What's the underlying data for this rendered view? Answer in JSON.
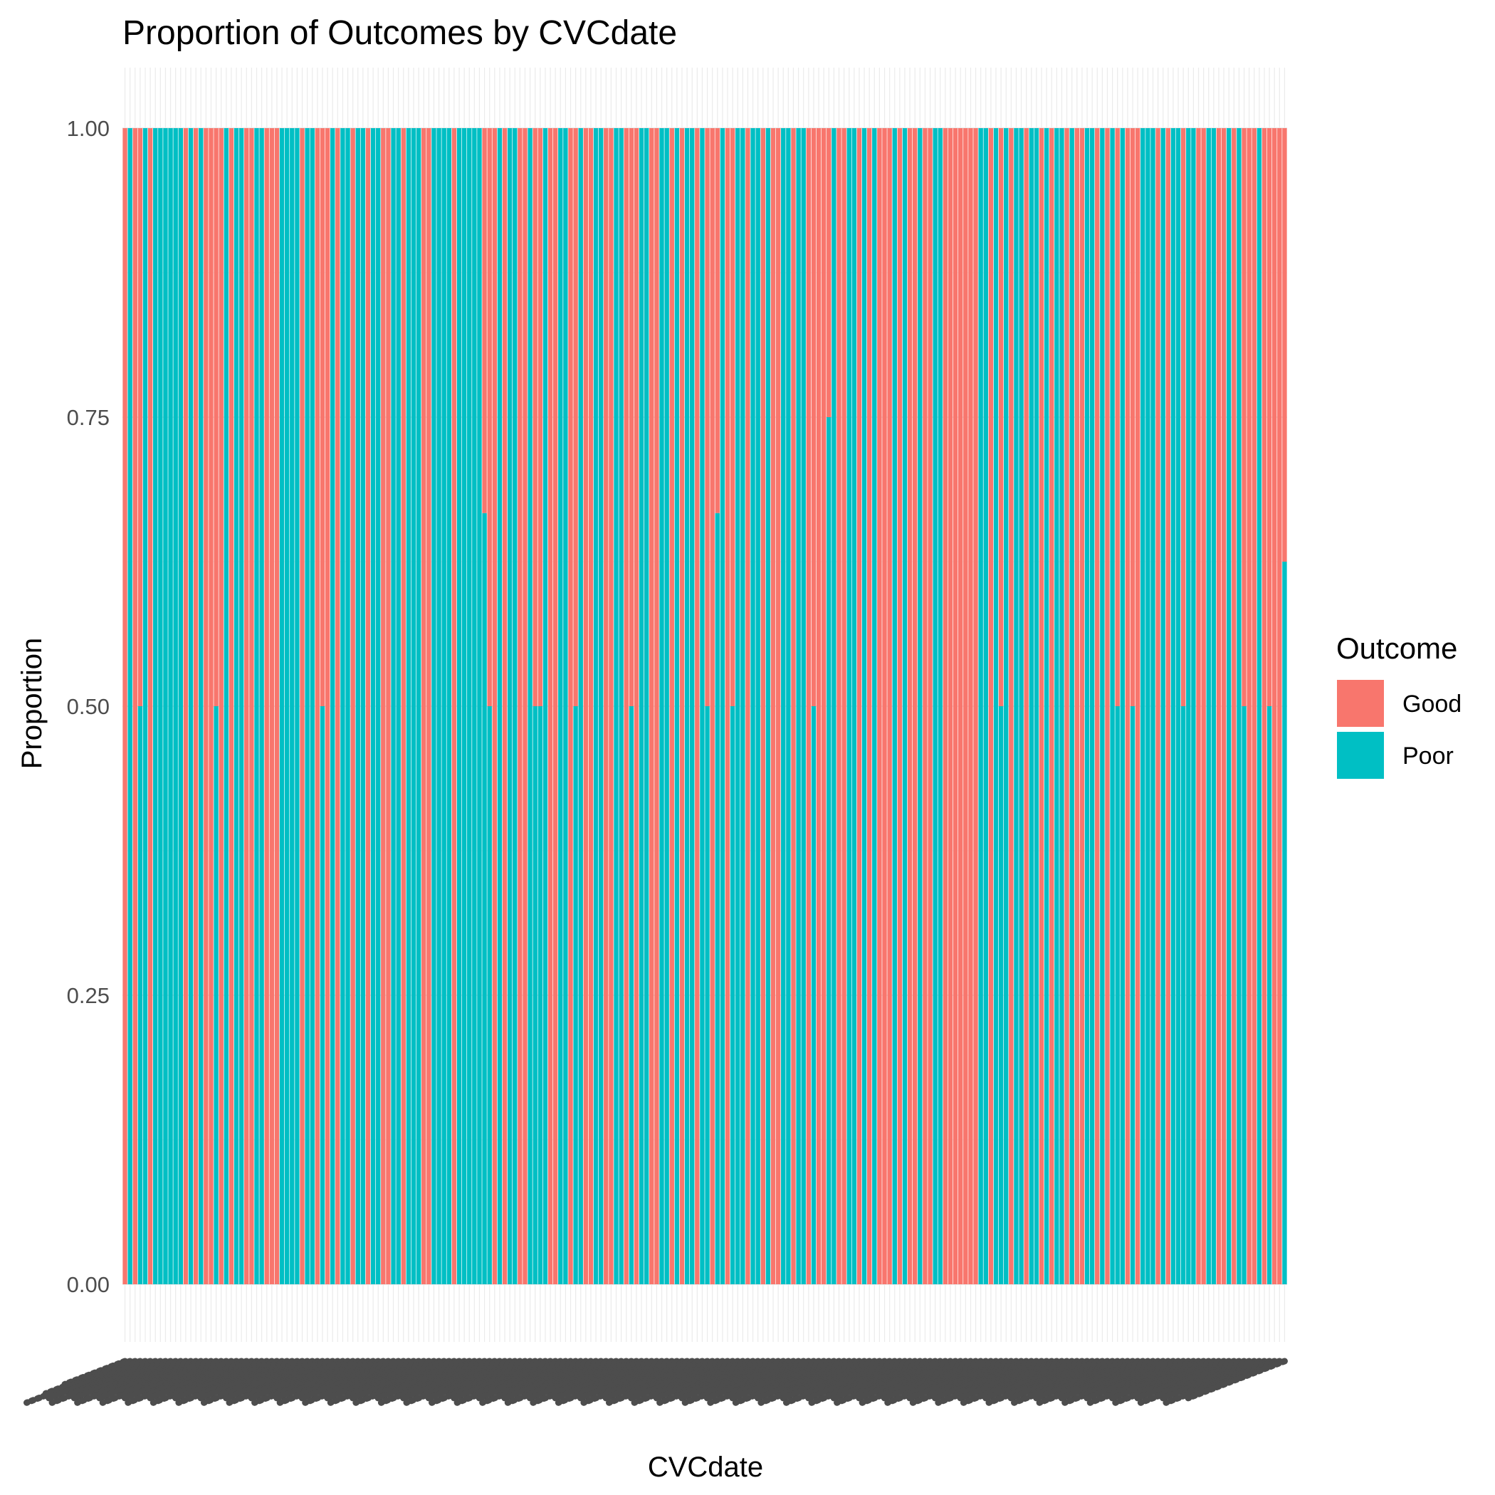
{
  "chart_data": {
    "type": "bar",
    "stacked": true,
    "title": "Proportion of Outcomes by CVCdate",
    "xlabel": "CVCdate",
    "ylabel": "Proportion",
    "ylim": [
      -0.05,
      1.05
    ],
    "yticks": [
      0,
      0.25,
      0.5,
      0.75,
      1
    ],
    "ytick_labels": [
      "0.00",
      "0.25",
      "0.50",
      "0.75",
      "1.00"
    ],
    "grid": true,
    "legend": {
      "title": "Outcome",
      "position": "right",
      "entries": [
        {
          "name": "Good",
          "color": "#F8766D"
        },
        {
          "name": "Poor",
          "color": "#00BFC4"
        }
      ]
    },
    "n_categories": 230,
    "category_labels_overplotted": true,
    "series": [
      {
        "name": "Good",
        "color": "#F8766D"
      },
      {
        "name": "Poor",
        "color": "#00BFC4"
      }
    ],
    "good_share": [
      1,
      0,
      1,
      0.5,
      0,
      1,
      0,
      0,
      0,
      0,
      0,
      0,
      1,
      0,
      1,
      0,
      1,
      1,
      0.5,
      1,
      0,
      1,
      0,
      0,
      1,
      1,
      0,
      0,
      1,
      1,
      1,
      0,
      0,
      0,
      0,
      1,
      0,
      0,
      1,
      0.5,
      1,
      0,
      1,
      0,
      0,
      1,
      0,
      0,
      1,
      0,
      0,
      1,
      1,
      0,
      0,
      1,
      0,
      0,
      0,
      1,
      1,
      0,
      0,
      0,
      0,
      1,
      0,
      0,
      0,
      0,
      0,
      0.333,
      0.5,
      1,
      0,
      1,
      0,
      0,
      1,
      1,
      0,
      0.5,
      0.5,
      0,
      1,
      1,
      0,
      0,
      1,
      0.5,
      0,
      1,
      1,
      0,
      0,
      1,
      1,
      0,
      0,
      1,
      0.5,
      1,
      0,
      0,
      1,
      1,
      0,
      0,
      1,
      0,
      1,
      0,
      0,
      1,
      0,
      0.5,
      1,
      0.333,
      0,
      1,
      0.5,
      0,
      0,
      1,
      0,
      0,
      1,
      0,
      1,
      1,
      0,
      0,
      1,
      0,
      0,
      1,
      0.5,
      1,
      1,
      0.25,
      0,
      1,
      1,
      0,
      0,
      1,
      0,
      1,
      0,
      1,
      1,
      1,
      0,
      1,
      0,
      1,
      1,
      0,
      1,
      1,
      0,
      0,
      1,
      1,
      1,
      1,
      1,
      1,
      1,
      0,
      0,
      1,
      0,
      0.5,
      0,
      1,
      0,
      0,
      1,
      0,
      0,
      1,
      0,
      1,
      0,
      0,
      1,
      0,
      1,
      1,
      0,
      0,
      1,
      0,
      1,
      0,
      0.5,
      0,
      1,
      0.5,
      1,
      0,
      0,
      0,
      1,
      0,
      1,
      0,
      0,
      0.5,
      0,
      0,
      1,
      1,
      0,
      0,
      1,
      1,
      0,
      1,
      0,
      0.5,
      1,
      1,
      0,
      1,
      0.5,
      1,
      1,
      0.375
    ]
  }
}
